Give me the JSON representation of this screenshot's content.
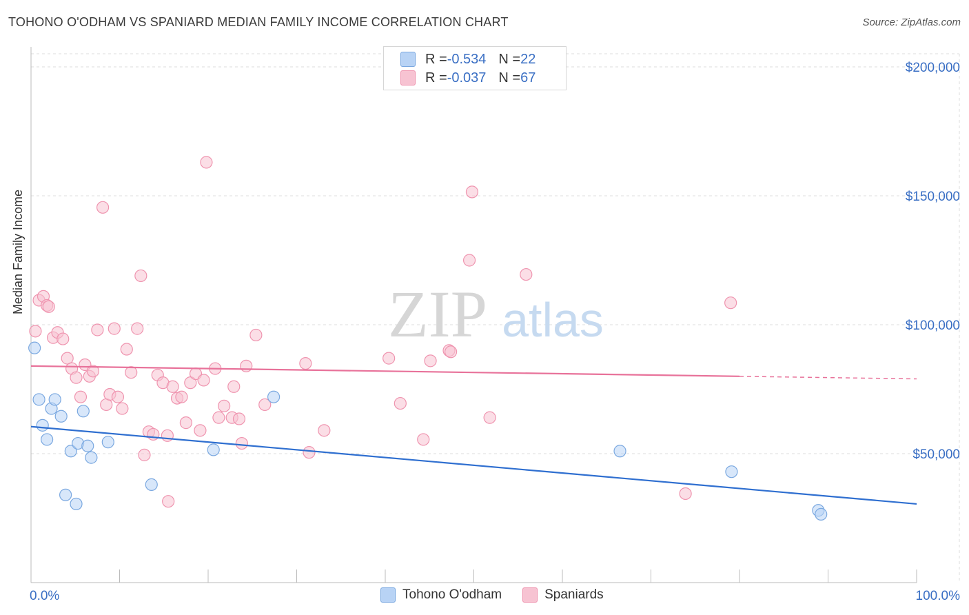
{
  "title": "TOHONO O'ODHAM VS SPANIARD MEDIAN FAMILY INCOME CORRELATION CHART",
  "source": "Source: ZipAtlas.com",
  "watermark": {
    "zip": "ZIP",
    "atlas": "atlas"
  },
  "legend_top": [
    {
      "r_label": "R = ",
      "r_value": "-0.534",
      "n_label": "N = ",
      "n_value": "22"
    },
    {
      "r_label": "R = ",
      "r_value": "-0.037",
      "n_label": "N = ",
      "n_value": "67"
    }
  ],
  "legend_bottom": [
    "Tohono O'odham",
    "Spaniards"
  ],
  "colors": {
    "blue_fill": "#b8d3f5",
    "blue_stroke": "#7aa8e0",
    "blue_line": "#2f6fd0",
    "pink_fill": "#f7c3d2",
    "pink_stroke": "#ef94af",
    "pink_line": "#e8729a",
    "axis_text": "#3a6fc4",
    "grid": "#dddddd"
  },
  "chart_data": {
    "type": "scatter",
    "title": "TOHONO O'ODHAM VS SPANIARD MEDIAN FAMILY INCOME CORRELATION CHART",
    "xlabel": "",
    "ylabel": "Median Family Income",
    "xlim": [
      0,
      100
    ],
    "ylim": [
      0,
      210000
    ],
    "x_tick_labels": [
      "0.0%",
      "100.0%"
    ],
    "y_ticks": [
      50000,
      100000,
      150000,
      200000
    ],
    "y_tick_labels": [
      "$50,000",
      "$100,000",
      "$150,000",
      "$200,000"
    ],
    "series": [
      {
        "name": "Tohono O'odham",
        "color": "blue",
        "points": [
          [
            0.4,
            91000
          ],
          [
            0.9,
            71000
          ],
          [
            1.3,
            61000
          ],
          [
            1.8,
            55500
          ],
          [
            2.3,
            67500
          ],
          [
            2.7,
            71000
          ],
          [
            3.4,
            64500
          ],
          [
            3.9,
            34000
          ],
          [
            4.5,
            51000
          ],
          [
            5.1,
            30500
          ],
          [
            5.3,
            54000
          ],
          [
            5.9,
            66500
          ],
          [
            6.4,
            53000
          ],
          [
            6.8,
            48500
          ],
          [
            8.7,
            54500
          ],
          [
            13.6,
            38000
          ],
          [
            20.6,
            51500
          ],
          [
            27.4,
            72000
          ],
          [
            66.5,
            51000
          ],
          [
            79.1,
            43000
          ],
          [
            88.9,
            28000
          ],
          [
            89.2,
            26500
          ]
        ],
        "trend": {
          "x": [
            0,
            100
          ],
          "y": [
            60500,
            30500
          ]
        }
      },
      {
        "name": "Spaniards",
        "color": "pink",
        "points": [
          [
            0.5,
            97500
          ],
          [
            0.9,
            109500
          ],
          [
            1.4,
            111000
          ],
          [
            1.8,
            107500
          ],
          [
            2.0,
            107000
          ],
          [
            2.5,
            95000
          ],
          [
            3.0,
            97000
          ],
          [
            3.6,
            94500
          ],
          [
            4.1,
            87000
          ],
          [
            4.6,
            83000
          ],
          [
            5.1,
            79500
          ],
          [
            5.6,
            72000
          ],
          [
            6.1,
            84500
          ],
          [
            6.6,
            80000
          ],
          [
            7.0,
            82000
          ],
          [
            7.5,
            98000
          ],
          [
            8.1,
            145500
          ],
          [
            8.5,
            69000
          ],
          [
            8.9,
            73000
          ],
          [
            9.4,
            98500
          ],
          [
            9.8,
            72000
          ],
          [
            10.3,
            67500
          ],
          [
            10.8,
            90500
          ],
          [
            11.3,
            81500
          ],
          [
            12.0,
            98500
          ],
          [
            12.4,
            119000
          ],
          [
            12.8,
            49500
          ],
          [
            13.3,
            58500
          ],
          [
            13.8,
            57500
          ],
          [
            14.3,
            80500
          ],
          [
            14.9,
            77500
          ],
          [
            15.4,
            57000
          ],
          [
            16.0,
            76000
          ],
          [
            16.5,
            71500
          ],
          [
            17.0,
            72000
          ],
          [
            17.5,
            62000
          ],
          [
            18.0,
            77500
          ],
          [
            18.6,
            81000
          ],
          [
            19.1,
            59000
          ],
          [
            19.5,
            78500
          ],
          [
            19.8,
            163000
          ],
          [
            20.8,
            83000
          ],
          [
            21.2,
            64000
          ],
          [
            21.8,
            68500
          ],
          [
            22.7,
            64000
          ],
          [
            22.9,
            76000
          ],
          [
            23.5,
            63500
          ],
          [
            23.8,
            54000
          ],
          [
            24.3,
            84000
          ],
          [
            25.4,
            96000
          ],
          [
            26.4,
            69000
          ],
          [
            31.0,
            85000
          ],
          [
            31.4,
            50500
          ],
          [
            33.1,
            59000
          ],
          [
            40.4,
            87000
          ],
          [
            41.7,
            69500
          ],
          [
            44.3,
            55500
          ],
          [
            45.1,
            86000
          ],
          [
            47.2,
            90000
          ],
          [
            47.4,
            89500
          ],
          [
            49.5,
            125000
          ],
          [
            49.8,
            151500
          ],
          [
            51.8,
            64000
          ],
          [
            55.9,
            119500
          ],
          [
            73.9,
            34500
          ],
          [
            79.0,
            108500
          ],
          [
            15.5,
            31500
          ]
        ],
        "trend": {
          "x": [
            0,
            80
          ],
          "y": [
            84000,
            80000
          ],
          "dashed_extension_to": [
            100,
            79000
          ]
        }
      }
    ]
  }
}
